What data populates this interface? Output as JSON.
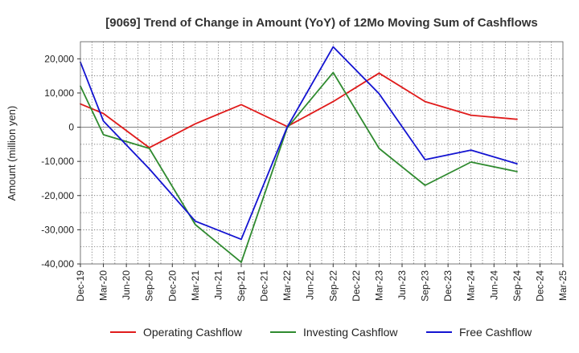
{
  "chart_data": {
    "type": "line",
    "title": "[9069]  Trend of Change in Amount (YoY) of 12Mo Moving Sum of Cashflows",
    "xlabel": "",
    "ylabel": "Amount (million yen)",
    "categories": [
      "Dec-19",
      "Mar-20",
      "Jun-20",
      "Sep-20",
      "Dec-20",
      "Mar-21",
      "Jun-21",
      "Sep-21",
      "Dec-21",
      "Mar-22",
      "Jun-22",
      "Sep-22",
      "Dec-22",
      "Mar-23",
      "Jun-23",
      "Sep-23",
      "Dec-23",
      "Mar-24",
      "Jun-24",
      "Sep-24",
      "Dec-24",
      "Mar-25"
    ],
    "ylim": [
      -40000,
      25000
    ],
    "yticks": [
      20000,
      10000,
      0,
      -10000,
      -20000,
      -30000,
      -40000
    ],
    "ytick_labels": [
      "20,000",
      "10,000",
      "0",
      "-10,000",
      "-20,000",
      "-30,000",
      "-40,000"
    ],
    "grid": true,
    "legend_position": "bottom",
    "series": [
      {
        "name": "Operating Cashflow",
        "color": "#e01b1b",
        "values": [
          6800,
          4000,
          null,
          -6000,
          null,
          1000,
          null,
          6600,
          null,
          200,
          null,
          7500,
          null,
          15800,
          null,
          7500,
          null,
          3500,
          null,
          2300,
          null,
          null
        ]
      },
      {
        "name": "Investing Cashflow",
        "color": "#2f8a2f",
        "values": [
          12000,
          -2200,
          null,
          -6200,
          null,
          -28500,
          null,
          -39500,
          null,
          -200,
          null,
          16000,
          null,
          -6200,
          null,
          -17000,
          null,
          -10200,
          null,
          -13000,
          null,
          null
        ]
      },
      {
        "name": "Free Cashflow",
        "color": "#1313d1",
        "values": [
          19000,
          1800,
          null,
          -12200,
          null,
          -27500,
          null,
          -32800,
          null,
          0,
          null,
          23500,
          null,
          9800,
          null,
          -9500,
          null,
          -6700,
          null,
          -10700,
          null,
          null
        ]
      }
    ]
  }
}
